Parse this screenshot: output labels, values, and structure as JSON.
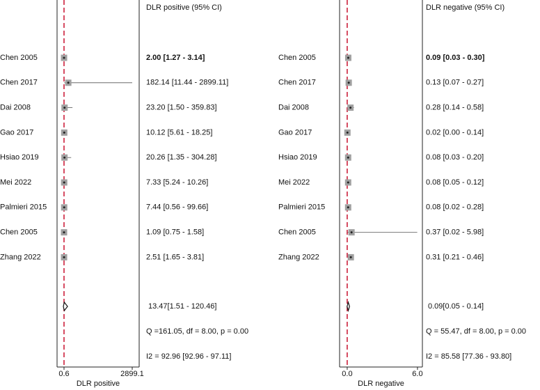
{
  "chart_data": [
    {
      "type": "forest",
      "header": "DLR positive (95% CI)",
      "x_label": "DLR positive",
      "categories": [
        "Chen 2005",
        "Chen 2017",
        "Dai 2008",
        "Gao 2017",
        "Hsiao 2019",
        "Mei 2022",
        "Palmieri 2015",
        "Chen 2005",
        "Zhang 2022"
      ],
      "values": [
        2.0,
        182.14,
        23.2,
        10.12,
        20.26,
        7.33,
        7.44,
        1.09,
        2.51
      ],
      "lower": [
        1.27,
        11.44,
        1.5,
        5.61,
        1.35,
        5.24,
        0.56,
        0.75,
        1.65
      ],
      "upper": [
        3.14,
        2899.11,
        359.83,
        18.25,
        304.28,
        10.26,
        99.66,
        1.58,
        3.81
      ],
      "value_labels": [
        "2.00 [1.27 - 3.14]",
        "182.14 [11.44 - 2899.11]",
        "23.20 [1.50 - 359.83]",
        "10.12 [5.61 - 18.25]",
        "20.26 [1.35 - 304.28]",
        "7.33 [5.24 - 10.26]",
        "7.44 [0.56 - 99.66]",
        "1.09 [0.75 - 1.58]",
        "2.51 [1.65 - 3.81]"
      ],
      "summary": {
        "value": 13.47,
        "lower": 1.51,
        "upper": 120.46,
        "label": "13.47[1.51 - 120.46]"
      },
      "annotations": [
        "Q =161.05, df = 8.00, p =  0.00",
        "I2 = 92.96 [92.96 - 97.11]"
      ],
      "xlim": [
        -295,
        3195
      ],
      "xticks": [
        0.6,
        2899.1
      ],
      "color": "#a0a0a0",
      "ref_color": "#c8102e"
    },
    {
      "type": "forest",
      "header": "DLR negative (95% CI)",
      "x_label": "DLR negative",
      "categories": [
        "Chen 2005",
        "Chen 2017",
        "Dai 2008",
        "Gao 2017",
        "Hsiao 2019",
        "Mei 2022",
        "Palmieri 2015",
        "Chen 2005",
        "Zhang 2022"
      ],
      "values": [
        0.09,
        0.13,
        0.28,
        0.02,
        0.08,
        0.08,
        0.08,
        0.37,
        0.31
      ],
      "lower": [
        0.03,
        0.07,
        0.14,
        0.0,
        0.03,
        0.05,
        0.02,
        0.02,
        0.21
      ],
      "upper": [
        0.3,
        0.27,
        0.58,
        0.14,
        0.2,
        0.12,
        0.28,
        5.98,
        0.46
      ],
      "value_labels": [
        "0.09 [0.03 - 0.30]",
        "0.13 [0.07 - 0.27]",
        "0.28 [0.14 - 0.58]",
        "0.02 [0.00 - 0.14]",
        "0.08 [0.03 - 0.20]",
        "0.08 [0.05 - 0.12]",
        "0.08 [0.02 - 0.28]",
        "0.37 [0.02 - 5.98]",
        "0.31 [0.21 - 0.46]"
      ],
      "summary": {
        "value": 0.09,
        "lower": 0.05,
        "upper": 0.14,
        "label": "0.09[0.05 - 0.14]"
      },
      "annotations": [
        "Q = 55.47, df = 8.00, p =  0.00",
        "I2 = 85.58 [77.36 - 93.80]"
      ],
      "xlim": [
        -0.65,
        6.42
      ],
      "xticks": [
        {
          "value": 0,
          "label": "0.0"
        },
        {
          "value": 6,
          "label": "6.0"
        }
      ],
      "color": "#a0a0a0",
      "ref_color": "#c8102e"
    }
  ]
}
